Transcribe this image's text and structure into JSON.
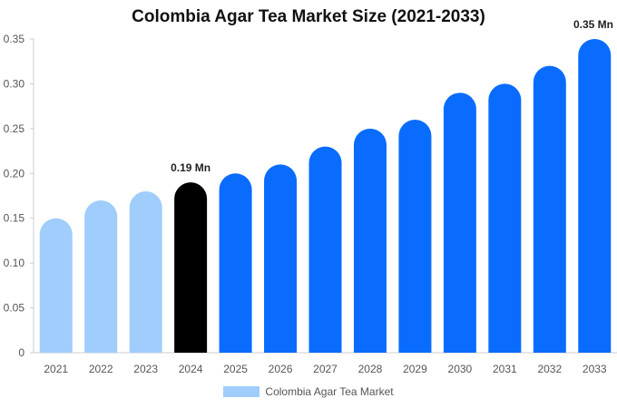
{
  "chart_data": {
    "type": "bar",
    "title": "Colombia Agar Tea Market Size (2021-2033)",
    "xlabel": "",
    "ylabel": "",
    "categories": [
      "2021",
      "2022",
      "2023",
      "2024",
      "2025",
      "2026",
      "2027",
      "2028",
      "2029",
      "2030",
      "2031",
      "2032",
      "2033"
    ],
    "series": [
      {
        "name": "Colombia Agar Tea Market",
        "values": [
          0.15,
          0.17,
          0.18,
          0.19,
          0.2,
          0.21,
          0.23,
          0.25,
          0.26,
          0.29,
          0.3,
          0.32,
          0.35
        ]
      }
    ],
    "ylim": [
      0,
      0.35
    ],
    "yticks": [
      "0",
      "0.05",
      "0.10",
      "0.15",
      "0.20",
      "0.25",
      "0.30",
      "0.35"
    ],
    "ytick_values": [
      0,
      0.05,
      0.1,
      0.15,
      0.2,
      0.25,
      0.3,
      0.35
    ],
    "annotations": [
      {
        "category": "2024",
        "text": "0.19 Mn"
      },
      {
        "category": "2033",
        "text": "0.35 Mn"
      }
    ],
    "highlight_category": "2024",
    "colors": {
      "historic": "#a0cdfc",
      "highlight": "#000000",
      "forecast": "#0a6cff",
      "axis": "#cccccc"
    },
    "legend": {
      "position": "bottom",
      "swatch_color": "#a0cdfc"
    },
    "grid": false
  }
}
